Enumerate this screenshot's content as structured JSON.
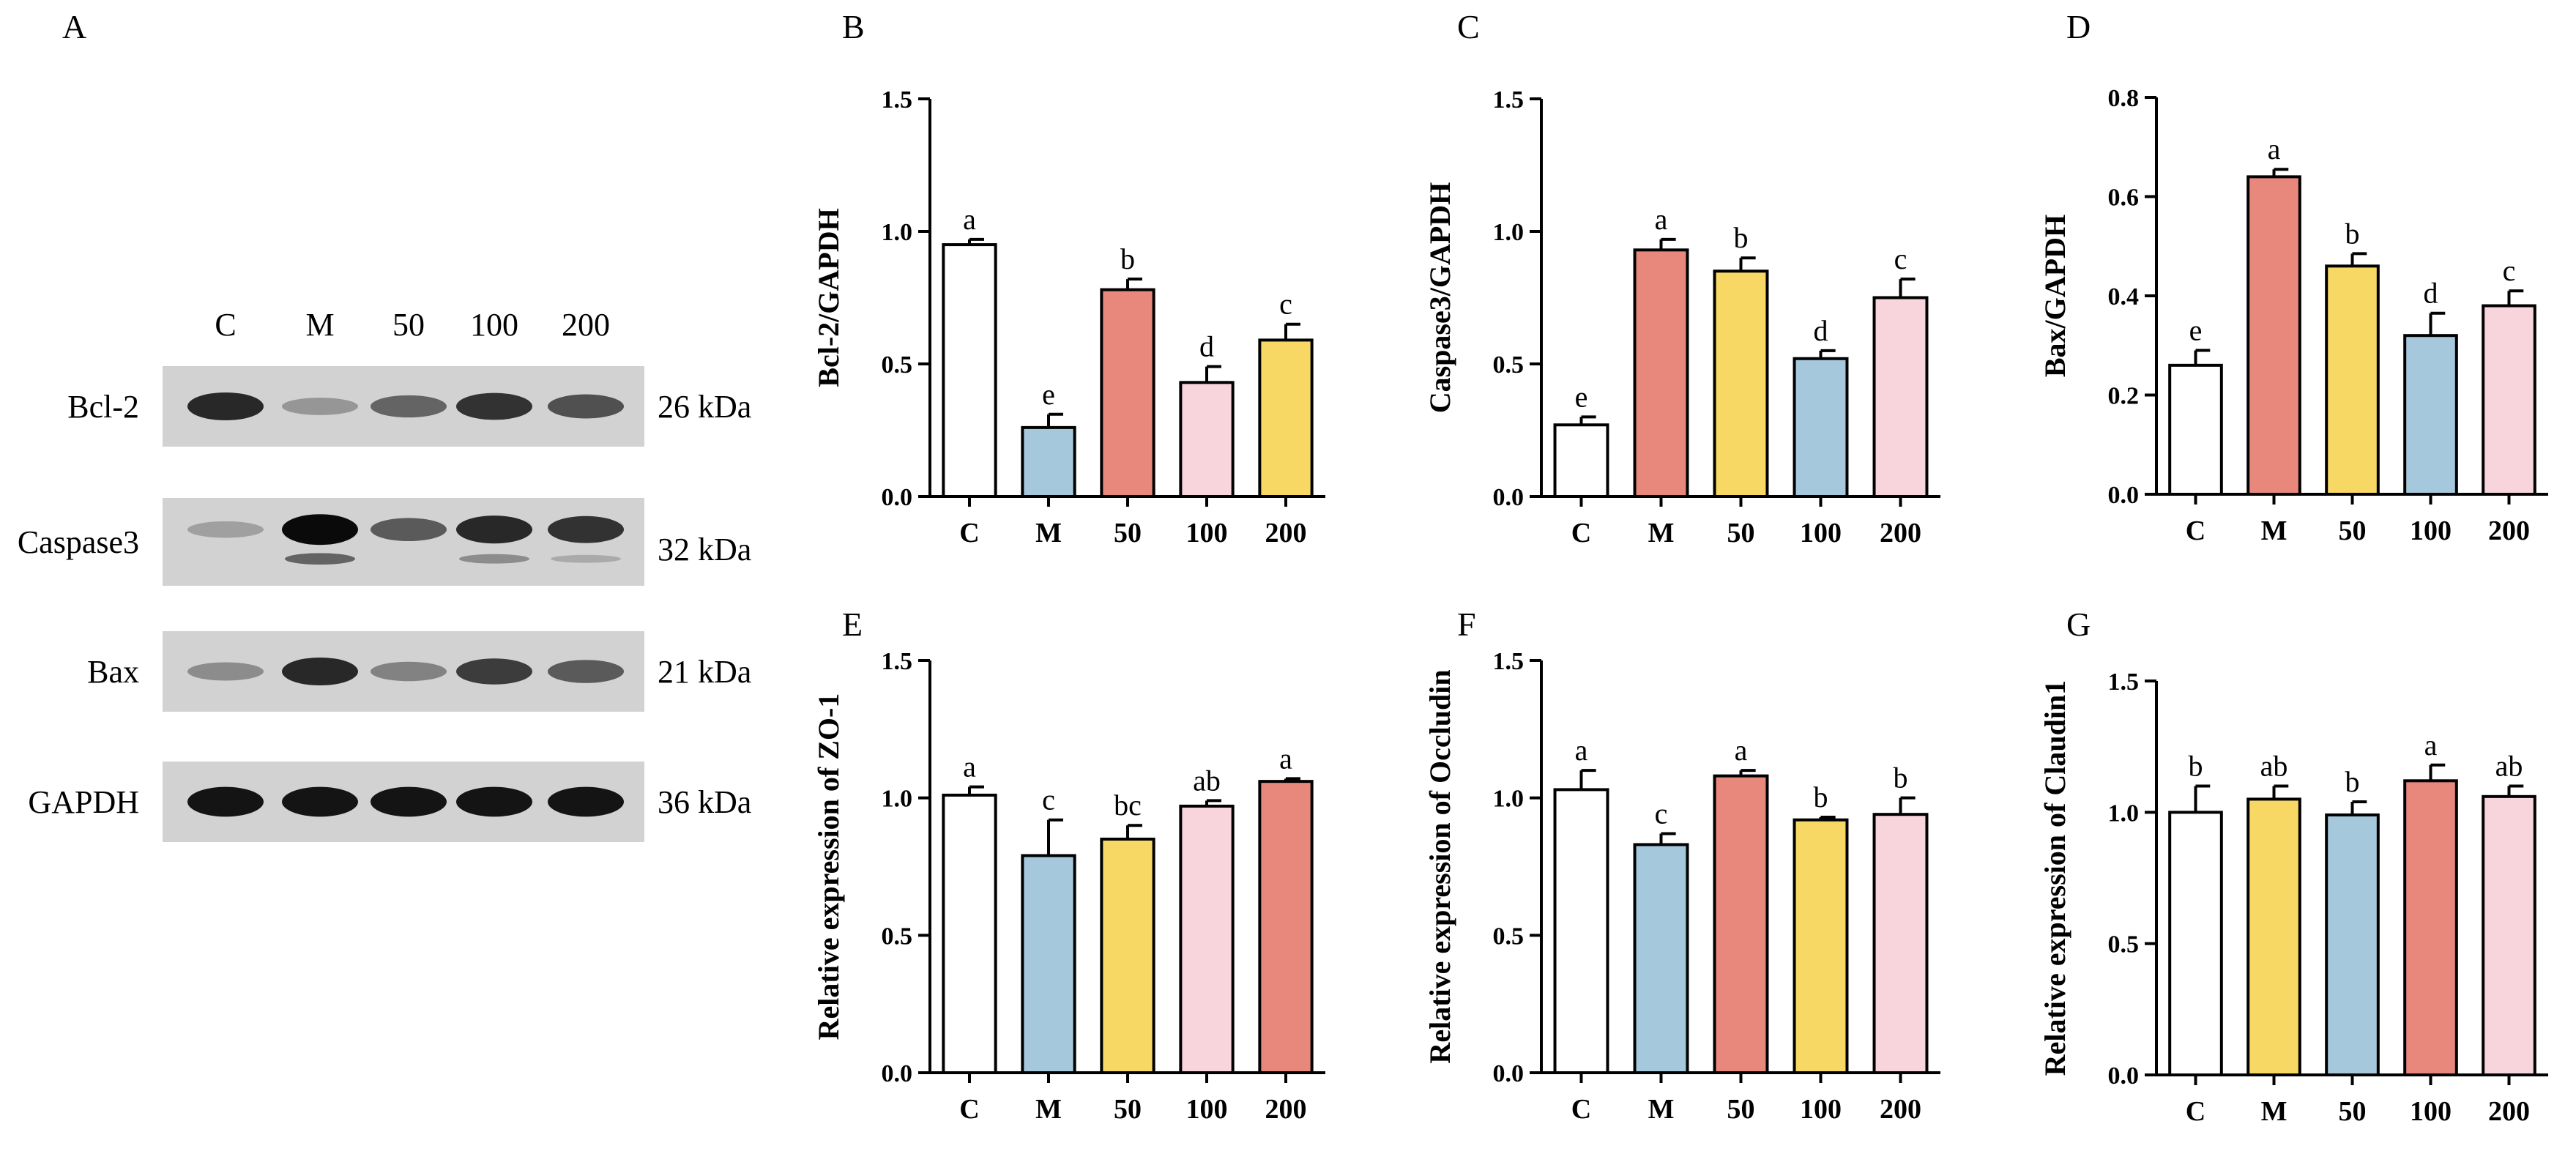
{
  "colors": {
    "white": "#ffffff",
    "blue": "#a5c8dc",
    "red": "#e8887c",
    "yellow": "#f8d864",
    "pink": "#f8d4dc",
    "outline": "#000000"
  },
  "western_blot": {
    "panel_letter": "A",
    "lanes": [
      "C",
      "M",
      "50",
      "100",
      "200"
    ],
    "rows": [
      {
        "protein": "Bcl-2",
        "kda": "26 kDa",
        "band_intensity": [
          0.85,
          0.3,
          0.55,
          0.8,
          0.65
        ],
        "lower_band": [
          0,
          0,
          0,
          0,
          0
        ]
      },
      {
        "protein": "Caspase3",
        "kda": "32 kDa",
        "band_intensity": [
          0.25,
          1.0,
          0.6,
          0.85,
          0.8
        ],
        "lower_band": [
          0,
          0.55,
          0,
          0.35,
          0.2
        ]
      },
      {
        "protein": "Bax",
        "kda": "21 kDa",
        "band_intensity": [
          0.35,
          0.85,
          0.4,
          0.75,
          0.6
        ],
        "lower_band": [
          0,
          0,
          0,
          0,
          0
        ]
      },
      {
        "protein": "GAPDH",
        "kda": "36 kDa",
        "band_intensity": [
          0.95,
          0.95,
          0.95,
          0.95,
          0.95
        ],
        "lower_band": [
          0,
          0,
          0,
          0,
          0
        ]
      }
    ]
  },
  "chart_data": [
    {
      "panel": "B",
      "type": "bar",
      "ylabel": "Bcl-2/GAPDH",
      "categories": [
        "C",
        "M",
        "50",
        "100",
        "200"
      ],
      "values": [
        0.95,
        0.26,
        0.78,
        0.43,
        0.59
      ],
      "errors": [
        0.02,
        0.05,
        0.04,
        0.06,
        0.06
      ],
      "letters": [
        "a",
        "e",
        "b",
        "d",
        "c"
      ],
      "colors": [
        "white",
        "blue",
        "red",
        "pink",
        "yellow"
      ],
      "ylim": [
        0,
        1.5
      ],
      "yticks": [
        "0.0",
        "0.5",
        "1.0",
        "1.5"
      ]
    },
    {
      "panel": "C",
      "type": "bar",
      "ylabel": "Caspase3/GAPDH",
      "categories": [
        "C",
        "M",
        "50",
        "100",
        "200"
      ],
      "values": [
        0.27,
        0.93,
        0.85,
        0.52,
        0.75
      ],
      "errors": [
        0.03,
        0.04,
        0.05,
        0.03,
        0.07
      ],
      "letters": [
        "e",
        "a",
        "b",
        "d",
        "c"
      ],
      "colors": [
        "white",
        "red",
        "yellow",
        "blue",
        "pink"
      ],
      "ylim": [
        0,
        1.5
      ],
      "yticks": [
        "0.0",
        "0.5",
        "1.0",
        "1.5"
      ]
    },
    {
      "panel": "D",
      "type": "bar",
      "ylabel": "Bax/GAPDH",
      "categories": [
        "C",
        "M",
        "50",
        "100",
        "200"
      ],
      "values": [
        0.26,
        0.64,
        0.46,
        0.32,
        0.38
      ],
      "errors": [
        0.03,
        0.015,
        0.025,
        0.045,
        0.03
      ],
      "letters": [
        "e",
        "a",
        "b",
        "d",
        "c"
      ],
      "colors": [
        "white",
        "red",
        "yellow",
        "blue",
        "pink"
      ],
      "ylim": [
        0,
        0.8
      ],
      "yticks": [
        "0.0",
        "0.2",
        "0.4",
        "0.6",
        "0.8"
      ]
    },
    {
      "panel": "E",
      "type": "bar",
      "ylabel": "Relative expression of ZO-1",
      "categories": [
        "C",
        "M",
        "50",
        "100",
        "200"
      ],
      "values": [
        1.01,
        0.79,
        0.85,
        0.97,
        1.06
      ],
      "errors": [
        0.03,
        0.13,
        0.05,
        0.02,
        0.01
      ],
      "letters": [
        "a",
        "c",
        "bc",
        "ab",
        "a"
      ],
      "colors": [
        "white",
        "blue",
        "yellow",
        "pink",
        "red"
      ],
      "ylim": [
        0,
        1.5
      ],
      "yticks": [
        "0.0",
        "0.5",
        "1.0",
        "1.5"
      ]
    },
    {
      "panel": "F",
      "type": "bar",
      "ylabel": "Relative expression of Occludin",
      "categories": [
        "C",
        "M",
        "50",
        "100",
        "200"
      ],
      "values": [
        1.03,
        0.83,
        1.08,
        0.92,
        0.94
      ],
      "errors": [
        0.07,
        0.04,
        0.02,
        0.01,
        0.06
      ],
      "letters": [
        "a",
        "c",
        "a",
        "b",
        "b"
      ],
      "colors": [
        "white",
        "blue",
        "red",
        "yellow",
        "pink"
      ],
      "ylim": [
        0,
        1.5
      ],
      "yticks": [
        "0.0",
        "0.5",
        "1.0",
        "1.5"
      ]
    },
    {
      "panel": "G",
      "type": "bar",
      "ylabel": "Relative expression of Claudin1",
      "categories": [
        "C",
        "M",
        "50",
        "100",
        "200"
      ],
      "values": [
        1.0,
        1.05,
        0.99,
        1.12,
        1.06
      ],
      "errors": [
        0.1,
        0.05,
        0.05,
        0.06,
        0.04
      ],
      "letters": [
        "b",
        "ab",
        "b",
        "a",
        "ab"
      ],
      "colors": [
        "white",
        "yellow",
        "blue",
        "red",
        "pink"
      ],
      "ylim": [
        0,
        1.5
      ],
      "yticks": [
        "0.0",
        "0.5",
        "1.0",
        "1.5"
      ]
    }
  ]
}
